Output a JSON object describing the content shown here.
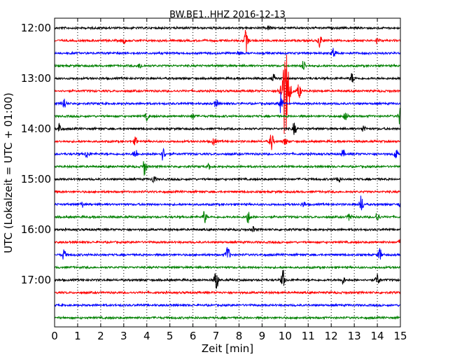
{
  "chart_data": {
    "type": "line",
    "title": "BW.BE1..HHZ 2016-12-13",
    "xlabel": "Zeit  [min]",
    "ylabel": "UTC (Lokalzeit = UTC + 01:00)",
    "xlim": [
      0,
      15
    ],
    "x_ticks": [
      "0",
      "1",
      "2",
      "3",
      "4",
      "5",
      "6",
      "7",
      "8",
      "9",
      "10",
      "11",
      "12",
      "13",
      "14",
      "15"
    ],
    "y_ticks": [
      "12:00",
      "13:00",
      "14:00",
      "15:00",
      "16:00",
      "17:00"
    ],
    "grid": "vertical-dotted",
    "colors": [
      "#000000",
      "#ff0000",
      "#0000ff",
      "#008000"
    ],
    "series": [
      {
        "start": "12:00",
        "color": "#000000",
        "events": [
          {
            "t": 9.3,
            "a": 0.15
          }
        ]
      },
      {
        "start": "12:15",
        "color": "#ff0000",
        "events": [
          {
            "t": 3.0,
            "a": 0.2
          },
          {
            "t": 8.3,
            "a": 0.9
          },
          {
            "t": 11.5,
            "a": 0.5
          },
          {
            "t": 14.0,
            "a": 0.2
          }
        ]
      },
      {
        "start": "12:30",
        "color": "#0000ff",
        "events": [
          {
            "t": 8.0,
            "a": 0.2
          },
          {
            "t": 12.1,
            "a": 0.5
          }
        ]
      },
      {
        "start": "12:45",
        "color": "#008000",
        "events": [
          {
            "t": 3.7,
            "a": 0.2
          },
          {
            "t": 10.8,
            "a": 0.4
          }
        ]
      },
      {
        "start": "13:00",
        "color": "#000000",
        "events": [
          {
            "t": 9.5,
            "a": 0.3
          },
          {
            "t": 12.9,
            "a": 0.4
          }
        ]
      },
      {
        "start": "13:15",
        "color": "#ff0000",
        "events": [
          {
            "t": 10.0,
            "a": 3.8
          },
          {
            "t": 10.6,
            "a": 0.6
          }
        ]
      },
      {
        "start": "13:30",
        "color": "#0000ff",
        "events": [
          {
            "t": 0.4,
            "a": 0.5
          },
          {
            "t": 7.0,
            "a": 0.3
          },
          {
            "t": 9.8,
            "a": 0.9
          }
        ]
      },
      {
        "start": "13:45",
        "color": "#008000",
        "events": [
          {
            "t": 4.0,
            "a": 0.3
          },
          {
            "t": 6.0,
            "a": 0.2
          },
          {
            "t": 12.6,
            "a": 0.6
          },
          {
            "t": 15.0,
            "a": 0.8
          }
        ]
      },
      {
        "start": "14:00",
        "color": "#000000",
        "events": [
          {
            "t": 0.2,
            "a": 0.4
          },
          {
            "t": 10.4,
            "a": 0.5
          },
          {
            "t": 13.4,
            "a": 0.3
          }
        ]
      },
      {
        "start": "14:15",
        "color": "#ff0000",
        "events": [
          {
            "t": 3.5,
            "a": 0.3
          },
          {
            "t": 6.9,
            "a": 0.3
          },
          {
            "t": 9.4,
            "a": 0.7
          },
          {
            "t": 10.0,
            "a": 0.3
          }
        ]
      },
      {
        "start": "14:30",
        "color": "#0000ff",
        "events": [
          {
            "t": 1.4,
            "a": 0.3
          },
          {
            "t": 3.5,
            "a": 0.4
          },
          {
            "t": 4.7,
            "a": 0.5
          },
          {
            "t": 12.5,
            "a": 0.3
          },
          {
            "t": 14.8,
            "a": 0.4
          }
        ]
      },
      {
        "start": "14:45",
        "color": "#008000",
        "events": [
          {
            "t": 3.9,
            "a": 0.7
          },
          {
            "t": 6.7,
            "a": 0.2
          }
        ]
      },
      {
        "start": "15:00",
        "color": "#000000",
        "events": [
          {
            "t": 4.3,
            "a": 0.3
          },
          {
            "t": 12.3,
            "a": 0.3
          }
        ]
      },
      {
        "start": "15:15",
        "color": "#ff0000",
        "events": []
      },
      {
        "start": "15:30",
        "color": "#0000ff",
        "events": [
          {
            "t": 1.2,
            "a": 0.2
          },
          {
            "t": 10.8,
            "a": 0.2
          },
          {
            "t": 13.3,
            "a": 0.7
          },
          {
            "t": 15.0,
            "a": 0.3
          }
        ]
      },
      {
        "start": "15:45",
        "color": "#008000",
        "events": [
          {
            "t": 6.5,
            "a": 0.5
          },
          {
            "t": 8.4,
            "a": 0.5
          },
          {
            "t": 12.8,
            "a": 0.3
          },
          {
            "t": 14.0,
            "a": 0.4
          }
        ]
      },
      {
        "start": "16:00",
        "color": "#000000",
        "events": [
          {
            "t": 8.6,
            "a": 0.2
          }
        ]
      },
      {
        "start": "16:15",
        "color": "#ff0000",
        "events": [
          {
            "t": 15.0,
            "a": 0.2
          }
        ]
      },
      {
        "start": "16:30",
        "color": "#0000ff",
        "events": [
          {
            "t": 0.4,
            "a": 0.4
          },
          {
            "t": 7.5,
            "a": 0.7
          },
          {
            "t": 14.1,
            "a": 0.5
          }
        ]
      },
      {
        "start": "16:45",
        "color": "#008000",
        "events": []
      },
      {
        "start": "17:00",
        "color": "#000000",
        "events": [
          {
            "t": 7.0,
            "a": 1.0
          },
          {
            "t": 9.9,
            "a": 0.8
          },
          {
            "t": 12.5,
            "a": 0.3
          },
          {
            "t": 14.0,
            "a": 0.5
          }
        ]
      },
      {
        "start": "17:15",
        "color": "#ff0000",
        "events": []
      },
      {
        "start": "17:30",
        "color": "#0000ff",
        "events": []
      },
      {
        "start": "17:45",
        "color": "#008000",
        "events": []
      }
    ]
  }
}
